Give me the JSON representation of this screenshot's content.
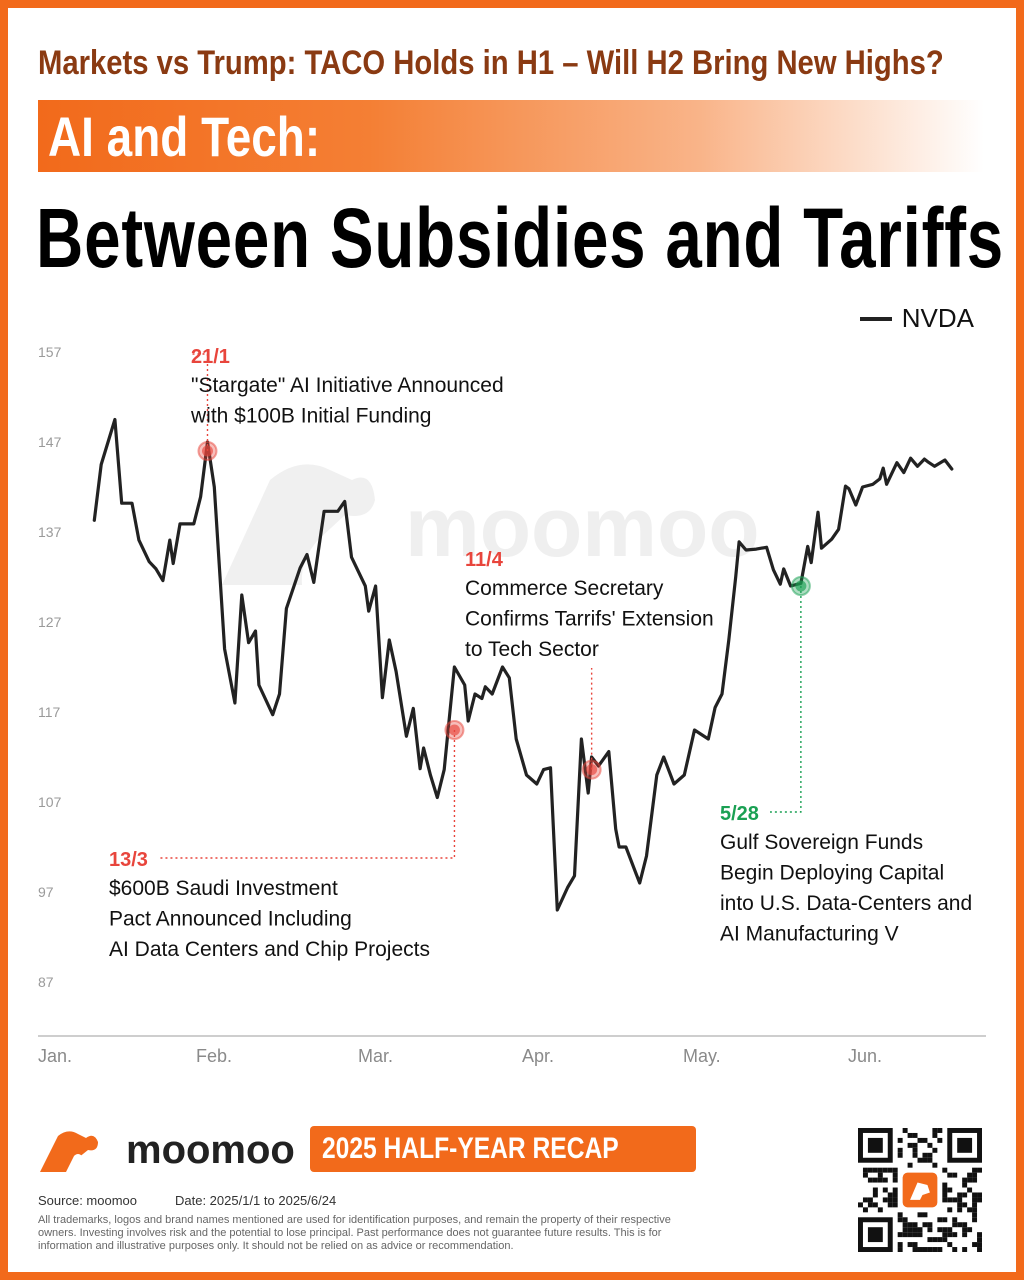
{
  "header": {
    "headline": "Markets vs Trump: TACO Holds in H1 – Will H2 Bring New Highs?",
    "section_label": "AI and Tech:",
    "main_title": "Between Subsidies and Tariffs"
  },
  "watermark": {
    "text": "moomoo"
  },
  "colors": {
    "accent": "#f26a1b",
    "headline": "#8a3a12",
    "line": "#222222",
    "red_marker": "#e8453c",
    "green_marker": "#1aa053"
  },
  "chart_data": {
    "type": "line",
    "series": [
      {
        "name": "NVDA",
        "values": [
          [
            1.0,
            138.3
          ],
          [
            1.2,
            144.5
          ],
          [
            1.6,
            149.5
          ],
          [
            1.8,
            140.2
          ],
          [
            2.1,
            140.2
          ],
          [
            2.3,
            136.1
          ],
          [
            2.6,
            133.7
          ],
          [
            2.8,
            132.9
          ],
          [
            3.0,
            131.6
          ],
          [
            3.2,
            136.1
          ],
          [
            3.3,
            133.5
          ],
          [
            3.5,
            137.9
          ],
          [
            3.9,
            137.9
          ],
          [
            4.1,
            140.9
          ],
          [
            4.3,
            147.0
          ],
          [
            4.5,
            142.0
          ],
          [
            4.8,
            124.0
          ],
          [
            5.1,
            118.0
          ],
          [
            5.3,
            130.0
          ],
          [
            5.5,
            124.7
          ],
          [
            5.7,
            126.0
          ],
          [
            5.8,
            120.0
          ],
          [
            6.2,
            116.7
          ],
          [
            6.4,
            119.0
          ],
          [
            6.6,
            128.5
          ],
          [
            7.0,
            133.0
          ],
          [
            7.2,
            134.5
          ],
          [
            7.4,
            131.4
          ],
          [
            7.7,
            139.3
          ],
          [
            8.1,
            139.3
          ],
          [
            8.3,
            140.4
          ],
          [
            8.5,
            134.2
          ],
          [
            8.9,
            131.0
          ],
          [
            9.0,
            128.2
          ],
          [
            9.2,
            131.0
          ],
          [
            9.4,
            118.6
          ],
          [
            9.6,
            125.0
          ],
          [
            9.8,
            121.5
          ],
          [
            10.1,
            114.3
          ],
          [
            10.3,
            117.4
          ],
          [
            10.5,
            110.7
          ],
          [
            10.6,
            113.0
          ],
          [
            10.8,
            110.0
          ],
          [
            11.0,
            107.5
          ],
          [
            11.2,
            110.6
          ],
          [
            11.5,
            122.0
          ],
          [
            11.8,
            120.0
          ],
          [
            11.9,
            116.0
          ],
          [
            12.1,
            119.0
          ],
          [
            12.3,
            118.5
          ],
          [
            12.4,
            119.8
          ],
          [
            12.6,
            119.0
          ],
          [
            12.9,
            122.0
          ],
          [
            13.1,
            120.8
          ],
          [
            13.3,
            114.0
          ],
          [
            13.6,
            110.0
          ],
          [
            13.9,
            109.0
          ],
          [
            14.1,
            110.6
          ],
          [
            14.3,
            110.8
          ],
          [
            14.5,
            95.0
          ],
          [
            14.8,
            97.5
          ],
          [
            15.0,
            98.8
          ],
          [
            15.2,
            114.0
          ],
          [
            15.4,
            108.0
          ],
          [
            15.5,
            112.0
          ],
          [
            15.7,
            111.0
          ],
          [
            16.0,
            112.6
          ],
          [
            16.2,
            104.0
          ],
          [
            16.3,
            102.0
          ],
          [
            16.5,
            102.0
          ],
          [
            16.8,
            99.0
          ],
          [
            16.9,
            98.0
          ],
          [
            17.1,
            101.0
          ],
          [
            17.4,
            110.0
          ],
          [
            17.6,
            112.0
          ],
          [
            17.9,
            109.0
          ],
          [
            18.2,
            110.0
          ],
          [
            18.5,
            115.0
          ],
          [
            18.9,
            114.0
          ],
          [
            19.1,
            117.5
          ],
          [
            19.3,
            119.0
          ],
          [
            19.5,
            125.0
          ],
          [
            19.7,
            132.0
          ],
          [
            19.8,
            135.9
          ],
          [
            20.0,
            135.0
          ],
          [
            20.3,
            135.1
          ],
          [
            20.6,
            135.3
          ],
          [
            20.8,
            132.8
          ],
          [
            21.0,
            131.2
          ],
          [
            21.1,
            132.9
          ],
          [
            21.3,
            131.0
          ],
          [
            21.6,
            131.3
          ],
          [
            21.8,
            135.4
          ],
          [
            21.9,
            133.6
          ],
          [
            22.1,
            139.2
          ],
          [
            22.2,
            135.2
          ],
          [
            22.5,
            136.2
          ],
          [
            22.7,
            137.3
          ],
          [
            22.9,
            142.1
          ],
          [
            23.0,
            141.8
          ],
          [
            23.2,
            140.0
          ],
          [
            23.4,
            142.0
          ],
          [
            23.7,
            142.3
          ],
          [
            23.9,
            142.9
          ],
          [
            24.0,
            144.1
          ],
          [
            24.1,
            142.3
          ],
          [
            24.4,
            144.7
          ],
          [
            24.6,
            143.6
          ],
          [
            24.8,
            145.2
          ],
          [
            25.0,
            144.3
          ],
          [
            25.2,
            145.1
          ],
          [
            25.3,
            144.8
          ],
          [
            25.5,
            144.3
          ],
          [
            25.8,
            145.0
          ],
          [
            26.0,
            144.0
          ]
        ]
      }
    ],
    "x_tick_labels": [
      "Jan.",
      "Feb.",
      "Mar.",
      "Apr.",
      "May.",
      "Jun."
    ],
    "y_ticks": [
      87,
      97,
      107,
      117,
      127,
      137,
      147,
      157
    ],
    "ylim": [
      85,
      160
    ],
    "legend": "top-right",
    "grid": false,
    "annotations": [
      {
        "date": "21/1",
        "lines": [
          "\"Stargate\" AI Initiative Announced",
          "with $100B Initial Funding"
        ],
        "marker_x": 4.3,
        "marker_y": 146.0,
        "color": "red"
      },
      {
        "date": "13/3",
        "lines": [
          "$600B Saudi Investment",
          "Pact Announced Including",
          "AI Data Centers and Chip Projects"
        ],
        "marker_x": 11.5,
        "marker_y": 115.0,
        "color": "red"
      },
      {
        "date": "11/4",
        "lines": [
          "Commerce Secretary",
          "Confirms Tarrifs' Extension",
          "to Tech Sector"
        ],
        "marker_x": 15.5,
        "marker_y": 110.6,
        "color": "red"
      },
      {
        "date": "5/28",
        "lines": [
          "Gulf Sovereign Funds",
          "Begin Deploying Capital",
          "into U.S. Data-Centers and",
          "AI Manufacturing V"
        ],
        "marker_x": 21.6,
        "marker_y": 131.0,
        "color": "green"
      }
    ]
  },
  "footer": {
    "logo_text": "moomoo",
    "recap_badge": "2025 HALF-YEAR RECAP",
    "source": "Source: moomoo",
    "date": "Date: 2025/1/1 to 2025/6/24",
    "disclaimer": "All trademarks, logos and brand names mentioned are used for identification purposes, and remain the property of their respective owners. Investing involves risk and the potential to lose principal. Past performance does not guarantee future results. This is for information and illustrative purposes only. It should not be relied on as advice or recommendation.",
    "qr_icon": "qr-code-icon"
  }
}
